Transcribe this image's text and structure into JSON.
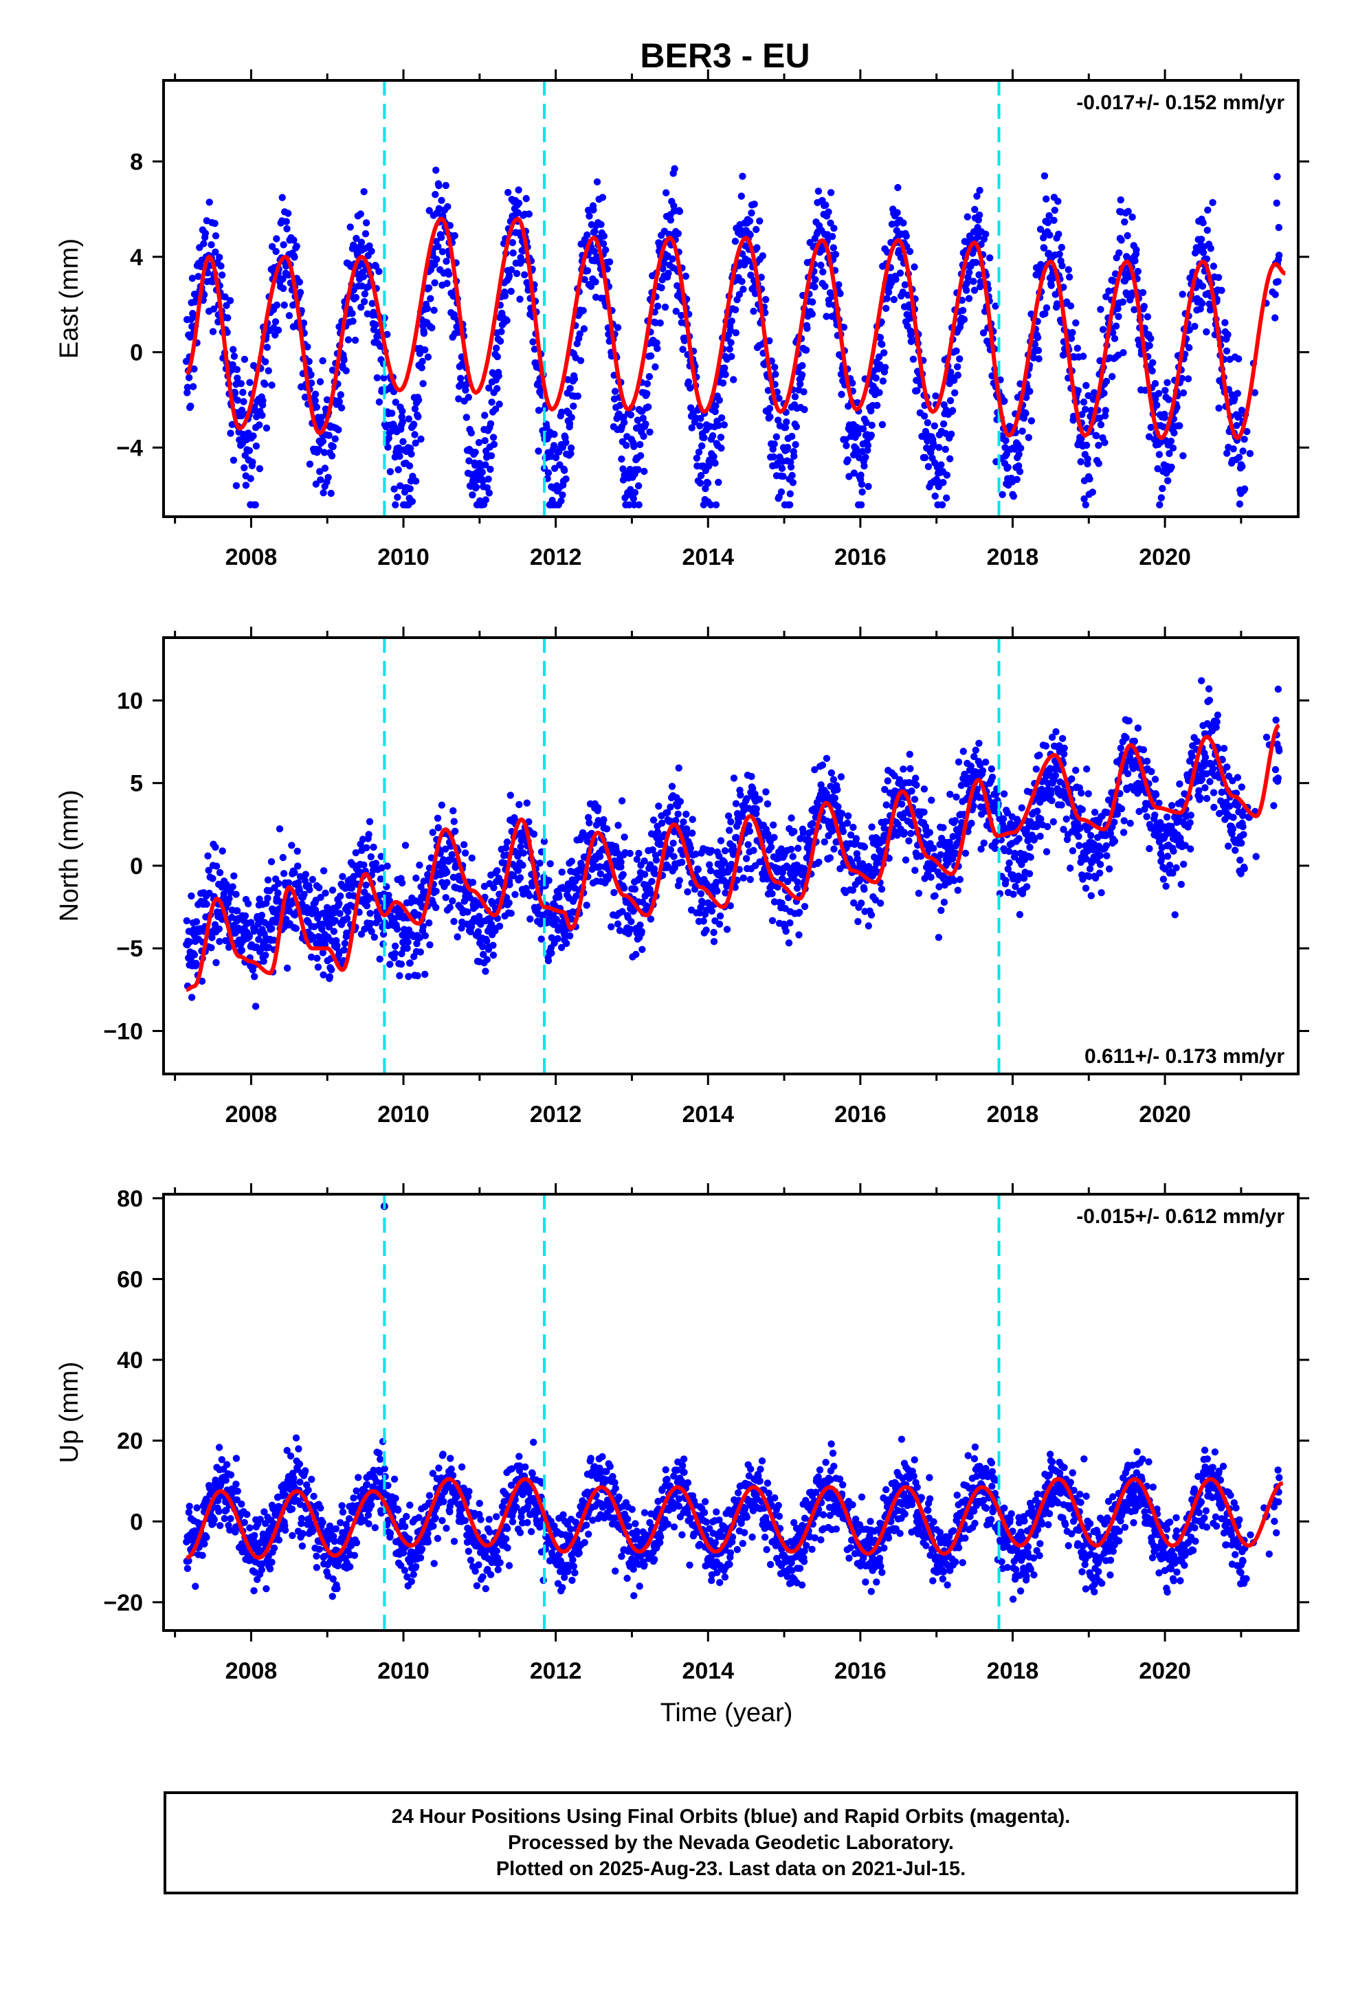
{
  "title": "BER3 - EU",
  "xlabel": "Time (year)",
  "caption": {
    "line1": "24 Hour Positions Using Final Orbits (blue) and Rapid Orbits (magenta).",
    "line2": "Processed by the Nevada Geodetic Laboratory.",
    "line3": "Plotted on 2025-Aug-23. Last data on 2021-Jul-15."
  },
  "colors": {
    "points": "#0000ff",
    "model": "#ff0000",
    "steps": "#00e5ee",
    "frame": "#000000"
  },
  "chart_data": [
    {
      "type": "scatter",
      "panel": "east",
      "ylabel": "East (mm)",
      "rate": "-0.017+/- 0.152 mm/yr",
      "xlim": [
        2006.85,
        2021.75
      ],
      "ylim": [
        -6.9,
        11.4
      ],
      "xticks": [
        2008,
        2010,
        2012,
        2014,
        2016,
        2018,
        2020
      ],
      "xtick_labels": [
        "2008",
        "2010",
        "2012",
        "2014",
        "2016",
        "2018",
        "2020"
      ],
      "yticks": [
        -4,
        0,
        4,
        8
      ],
      "ytick_labels": [
        "−4",
        "0",
        "4",
        "8"
      ],
      "step_lines": [
        2009.75,
        2011.85,
        2017.82
      ],
      "model": {
        "x": [
          2007.15,
          2007.45,
          2007.85,
          2008.45,
          2008.9,
          2009.45,
          2009.95,
          2010.5,
          2010.95,
          2011.5,
          2011.95,
          2012.5,
          2012.95,
          2013.5,
          2013.95,
          2014.5,
          2014.95,
          2015.5,
          2015.95,
          2016.5,
          2016.95,
          2017.5,
          2017.95,
          2018.5,
          2018.95,
          2019.5,
          2019.95,
          2020.5,
          2020.95,
          2021.45,
          2021.58
        ],
        "y": [
          -0.9,
          4.0,
          -3.2,
          4.0,
          -3.4,
          4.0,
          -1.6,
          5.6,
          -1.7,
          5.6,
          -2.4,
          4.8,
          -2.4,
          4.8,
          -2.5,
          4.8,
          -2.5,
          4.7,
          -2.4,
          4.7,
          -2.5,
          4.6,
          -3.5,
          3.8,
          -3.5,
          3.8,
          -3.6,
          3.8,
          -3.6,
          3.7,
          3.3
        ]
      },
      "scatter": {
        "x_start": 2007.15,
        "x_end": 2021.5,
        "n_points": 2600,
        "mean_offset": 0,
        "trend": -0.017,
        "seasonal": [
          [
            2007.45,
            4.0
          ],
          [
            2008.45,
            4.0
          ],
          [
            2009.45,
            4.0
          ],
          [
            2010.5,
            5.6
          ],
          [
            2011.5,
            5.6
          ],
          [
            2012.5,
            4.8
          ],
          [
            2013.5,
            4.8
          ],
          [
            2014.5,
            4.8
          ],
          [
            2015.5,
            4.7
          ],
          [
            2016.5,
            4.7
          ],
          [
            2017.5,
            4.6
          ],
          [
            2018.5,
            3.8
          ],
          [
            2019.5,
            3.8
          ],
          [
            2020.5,
            3.8
          ]
        ],
        "scatter_sd": 1.3,
        "range": [
          -6.4,
          11.0
        ]
      }
    },
    {
      "type": "scatter",
      "panel": "north",
      "ylabel": "North (mm)",
      "rate": "0.611+/- 0.173 mm/yr",
      "xlim": [
        2006.85,
        2021.75
      ],
      "ylim": [
        -12.6,
        13.8
      ],
      "xticks": [
        2008,
        2010,
        2012,
        2014,
        2016,
        2018,
        2020
      ],
      "xtick_labels": [
        "2008",
        "2010",
        "2012",
        "2014",
        "2016",
        "2018",
        "2020"
      ],
      "yticks": [
        -10,
        -5,
        0,
        5,
        10
      ],
      "ytick_labels": [
        "−10",
        "−5",
        "0",
        "5",
        "10"
      ],
      "step_lines": [
        2009.75,
        2011.85,
        2017.82
      ],
      "model": {
        "x": [
          2007.15,
          2007.25,
          2007.55,
          2007.85,
          2008.0,
          2008.25,
          2008.5,
          2008.8,
          2009.0,
          2009.2,
          2009.5,
          2009.75,
          2009.9,
          2010.2,
          2010.55,
          2010.9,
          2011.2,
          2011.55,
          2011.85,
          2012.1,
          2012.2,
          2012.55,
          2012.9,
          2013.2,
          2013.55,
          2013.9,
          2014.2,
          2014.55,
          2014.9,
          2015.2,
          2015.55,
          2015.9,
          2016.2,
          2016.55,
          2016.9,
          2017.2,
          2017.55,
          2017.8,
          2018.0,
          2018.55,
          2018.9,
          2019.2,
          2019.55,
          2019.9,
          2020.2,
          2020.55,
          2020.9,
          2021.2,
          2021.5
        ],
        "y": [
          -7.5,
          -7.3,
          -2.0,
          -5.5,
          -5.8,
          -6.5,
          -1.3,
          -5.0,
          -5.0,
          -6.3,
          -0.5,
          -3.0,
          -2.2,
          -3.5,
          2.2,
          -1.5,
          -3.0,
          2.8,
          -2.5,
          -2.8,
          -3.8,
          2.0,
          -1.8,
          -3.0,
          2.5,
          -1.3,
          -2.5,
          3.0,
          -1.0,
          -2.0,
          3.8,
          -0.3,
          -1.0,
          4.5,
          0.5,
          -0.5,
          5.2,
          1.8,
          2.0,
          6.7,
          2.8,
          2.2,
          7.3,
          3.5,
          3.2,
          7.8,
          4.2,
          3.0,
          8.5
        ]
      },
      "scatter": {
        "x_start": 2007.15,
        "x_end": 2021.5,
        "n_points": 2600,
        "mean_offset": -4.0,
        "trend": 0.611,
        "seasonal": [
          [
            2007.55,
            1.5
          ],
          [
            2008.5,
            1.5
          ],
          [
            2009.5,
            1.5
          ],
          [
            2010.55,
            2.5
          ],
          [
            2011.55,
            2.5
          ],
          [
            2012.55,
            2.5
          ],
          [
            2013.55,
            2.5
          ],
          [
            2014.55,
            2.5
          ],
          [
            2015.55,
            2.5
          ],
          [
            2016.55,
            2.5
          ],
          [
            2017.55,
            2.5
          ],
          [
            2018.55,
            3.0
          ],
          [
            2019.55,
            3.0
          ],
          [
            2020.55,
            3.0
          ]
        ],
        "scatter_sd": 1.5,
        "range": [
          -12.0,
          13.2
        ]
      }
    },
    {
      "type": "scatter",
      "panel": "up",
      "ylabel": "Up (mm)",
      "rate": "-0.015+/- 0.612 mm/yr",
      "xlim": [
        2006.85,
        2021.75
      ],
      "ylim": [
        -27,
        81
      ],
      "xticks": [
        2008,
        2010,
        2012,
        2014,
        2016,
        2018,
        2020
      ],
      "xtick_labels": [
        "2008",
        "2010",
        "2012",
        "2014",
        "2016",
        "2018",
        "2020"
      ],
      "yticks": [
        -20,
        0,
        20,
        40,
        60,
        80
      ],
      "ytick_labels": [
        "−20",
        "0",
        "20",
        "40",
        "60",
        "80"
      ],
      "step_lines": [
        2009.75,
        2011.85,
        2017.82
      ],
      "outliers": [
        [
          2009.75,
          78
        ]
      ],
      "model": {
        "x": [
          2007.15,
          2007.6,
          2008.1,
          2008.6,
          2009.1,
          2009.6,
          2010.1,
          2010.6,
          2011.1,
          2011.6,
          2012.1,
          2012.6,
          2013.1,
          2013.6,
          2014.1,
          2014.6,
          2015.1,
          2015.6,
          2016.1,
          2016.6,
          2017.1,
          2017.6,
          2018.1,
          2018.6,
          2019.1,
          2019.6,
          2020.1,
          2020.6,
          2021.1,
          2021.55
        ],
        "y": [
          -9,
          7.5,
          -9,
          7.5,
          -8.5,
          7.5,
          -6,
          10.5,
          -6,
          10.5,
          -7.5,
          8.5,
          -7.5,
          8.5,
          -7.5,
          8.5,
          -7.5,
          8.5,
          -8,
          8.5,
          -8,
          8.5,
          -6,
          10.5,
          -6,
          10.5,
          -6,
          10.5,
          -6,
          9.5
        ]
      },
      "scatter": {
        "x_start": 2007.15,
        "x_end": 2021.5,
        "n_points": 2600,
        "mean_offset": 0,
        "trend": -0.015,
        "seasonal": [
          [
            2007.6,
            8.0
          ],
          [
            2008.6,
            8.0
          ],
          [
            2009.6,
            8.0
          ],
          [
            2010.6,
            8.5
          ],
          [
            2011.6,
            8.5
          ],
          [
            2012.6,
            8.0
          ],
          [
            2013.6,
            8.0
          ],
          [
            2014.6,
            8.0
          ],
          [
            2015.6,
            8.0
          ],
          [
            2016.6,
            8.0
          ],
          [
            2017.6,
            8.0
          ],
          [
            2018.6,
            8.5
          ],
          [
            2019.6,
            8.5
          ],
          [
            2020.6,
            8.5
          ]
        ],
        "scatter_sd": 4.5,
        "range": [
          -25,
          23
        ]
      }
    }
  ]
}
